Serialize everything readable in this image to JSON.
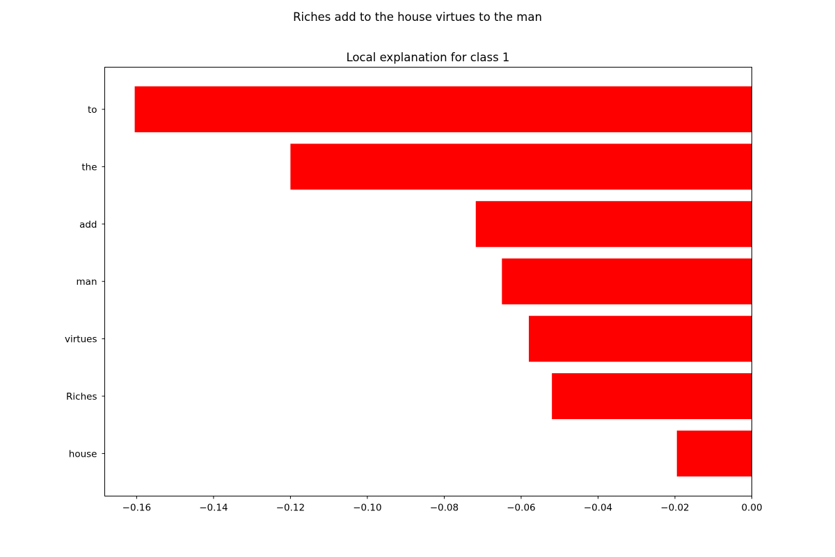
{
  "figure": {
    "suptitle": "Riches add to the house virtues to the man"
  },
  "chart_data": {
    "type": "bar",
    "orientation": "horizontal",
    "title": "Local explanation for class 1",
    "xlabel": "",
    "ylabel": "",
    "categories": [
      "to",
      "the",
      "add",
      "man",
      "virtues",
      "Riches",
      "house"
    ],
    "values": [
      -0.1605,
      -0.12,
      -0.0718,
      -0.065,
      -0.058,
      -0.052,
      -0.0195
    ],
    "bar_color": "#ff0000",
    "xlim": [
      -0.1683,
      0.0
    ],
    "xticks": [
      -0.16,
      -0.14,
      -0.12,
      -0.1,
      -0.08,
      -0.06,
      -0.04,
      -0.02,
      0.0
    ],
    "xtick_labels": [
      "−0.16",
      "−0.14",
      "−0.12",
      "−0.10",
      "−0.08",
      "−0.06",
      "−0.04",
      "−0.02",
      "0.00"
    ],
    "grid": false,
    "legend": "none"
  }
}
